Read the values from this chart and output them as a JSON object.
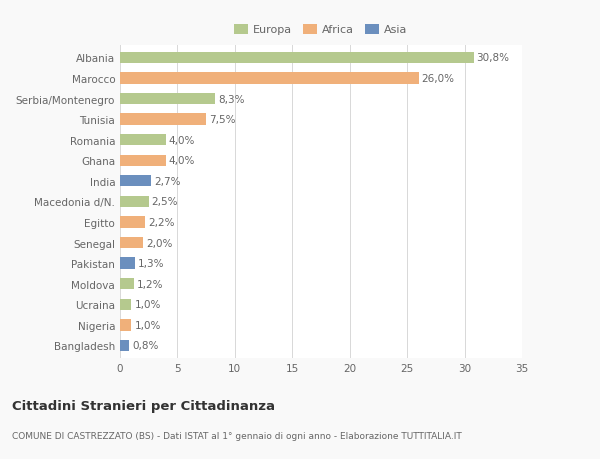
{
  "categories": [
    "Albania",
    "Marocco",
    "Serbia/Montenegro",
    "Tunisia",
    "Romania",
    "Ghana",
    "India",
    "Macedonia d/N.",
    "Egitto",
    "Senegal",
    "Pakistan",
    "Moldova",
    "Ucraina",
    "Nigeria",
    "Bangladesh"
  ],
  "values": [
    30.8,
    26.0,
    8.3,
    7.5,
    4.0,
    4.0,
    2.7,
    2.5,
    2.2,
    2.0,
    1.3,
    1.2,
    1.0,
    1.0,
    0.8
  ],
  "labels": [
    "30,8%",
    "26,0%",
    "8,3%",
    "7,5%",
    "4,0%",
    "4,0%",
    "2,7%",
    "2,5%",
    "2,2%",
    "2,0%",
    "1,3%",
    "1,2%",
    "1,0%",
    "1,0%",
    "0,8%"
  ],
  "colors": [
    "#b5c98e",
    "#f0b07a",
    "#b5c98e",
    "#f0b07a",
    "#b5c98e",
    "#f0b07a",
    "#6b8fbe",
    "#b5c98e",
    "#f0b07a",
    "#f0b07a",
    "#6b8fbe",
    "#b5c98e",
    "#b5c98e",
    "#f0b07a",
    "#6b8fbe"
  ],
  "legend_labels": [
    "Europa",
    "Africa",
    "Asia"
  ],
  "legend_colors": [
    "#b5c98e",
    "#f0b07a",
    "#6b8fbe"
  ],
  "title": "Cittadini Stranieri per Cittadinanza",
  "subtitle": "COMUNE DI CASTREZZATO (BS) - Dati ISTAT al 1° gennaio di ogni anno - Elaborazione TUTTITALIA.IT",
  "xlim": [
    0,
    35
  ],
  "xticks": [
    0,
    5,
    10,
    15,
    20,
    25,
    30,
    35
  ],
  "bg_color": "#f9f9f9",
  "bar_bg_color": "#ffffff",
  "grid_color": "#d8d8d8",
  "text_color": "#666666",
  "label_fontsize": 7.5,
  "tick_fontsize": 7.5,
  "title_fontsize": 9.5,
  "subtitle_fontsize": 6.5,
  "bar_height": 0.55
}
